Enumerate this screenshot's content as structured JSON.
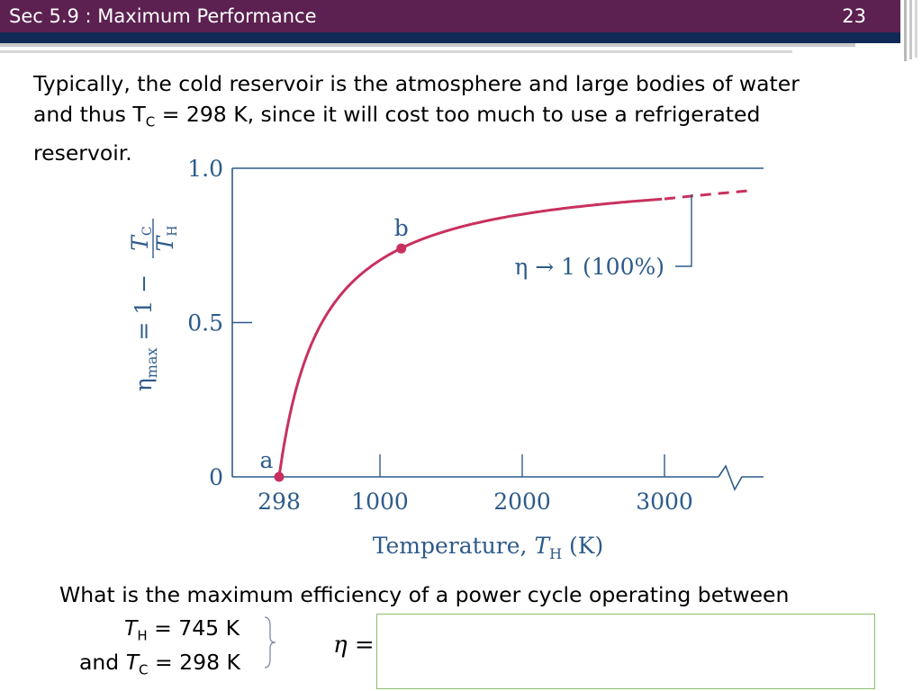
{
  "header": {
    "title": "Sec 5.9 : Maximum Performance",
    "page_number": "23"
  },
  "intro": {
    "line1": "Typically, the cold reservoir is the atmosphere and large bodies of water",
    "line2_pre": "and thus  T",
    "line2_sub": "C",
    "line2_post": " = 298 K, since it will cost too much to use a refrigerated",
    "line3": "reservoir."
  },
  "question": {
    "text": "What is the maximum efficiency of a power cycle operating between",
    "th_symbol": "T",
    "th_sub": "H",
    "th_value": " = 745 K",
    "tc_prefix": "and ",
    "tc_symbol": "T",
    "tc_sub": "C",
    "tc_value": " = 298 K",
    "eta_label": "η ="
  },
  "colors": {
    "title_bar": "#5c2150",
    "navy_bar": "#0f2a56",
    "curve": "#c8315e",
    "axis": "#2d5b8a",
    "answer_border": "#8dbd6a"
  },
  "chart_data": {
    "type": "line",
    "xlabel_main": "Temperature, ",
    "xlabel_sym": "T",
    "xlabel_sub": "H",
    "xlabel_unit": " (K)",
    "ylabel_main": "η",
    "ylabel_sub": "max",
    "ylabel_eq": " = 1 − ",
    "ylabel_num": "T",
    "ylabel_num_sub": "C",
    "ylabel_den": "T",
    "ylabel_den_sub": "H",
    "x_ticks": [
      "298",
      "1000",
      "2000",
      "3000"
    ],
    "x_tick_values": [
      298,
      1000,
      2000,
      3000
    ],
    "y_ticks": [
      "0",
      "0.5",
      "1.0"
    ],
    "y_tick_values": [
      0,
      0.5,
      1.0
    ],
    "xlim": [
      0,
      3700
    ],
    "ylim": [
      0,
      1.0
    ],
    "tc": 298,
    "solid_range": [
      298,
      3000
    ],
    "dashed_range": [
      3000,
      3600
    ],
    "points": [
      {
        "label": "a",
        "x": 298,
        "y": 0.0
      },
      {
        "label": "b",
        "x": 1150,
        "y": 0.74
      }
    ],
    "annotation": "η → 1 (100%)"
  }
}
